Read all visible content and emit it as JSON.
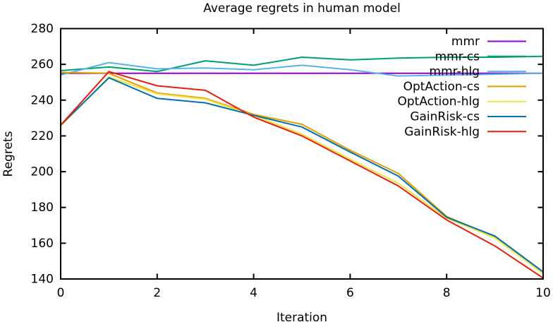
{
  "chart_data": {
    "type": "line",
    "title": "Average regrets in human model",
    "xlabel": "Iteration",
    "ylabel": "Regrets",
    "xlim": [
      0,
      10
    ],
    "ylim": [
      140,
      280
    ],
    "x_ticks": [
      0,
      2,
      4,
      6,
      8,
      10
    ],
    "y_ticks": [
      140,
      160,
      180,
      200,
      220,
      240,
      260,
      280
    ],
    "grid": false,
    "legend_position": "top-right-inside",
    "background_color": "#ffffff",
    "axis_color": "#000000",
    "x": [
      0,
      1,
      2,
      3,
      4,
      5,
      6,
      7,
      8,
      9,
      10
    ],
    "series": [
      {
        "name": "mmr",
        "color": "#9400d3",
        "values": [
          255,
          255,
          255,
          255,
          255,
          255,
          255,
          255,
          255,
          255,
          255
        ]
      },
      {
        "name": "mmr-cs",
        "color": "#009e73",
        "values": [
          256.5,
          258.5,
          256,
          262,
          259.5,
          264,
          262.5,
          263.5,
          264,
          264,
          264.5
        ]
      },
      {
        "name": "mmr-hlg",
        "color": "#56b4e9",
        "values": [
          254,
          261,
          257.5,
          258,
          257,
          259.5,
          257,
          253.5,
          254,
          254.5,
          255
        ]
      },
      {
        "name": "OptAction-cs",
        "color": "#e69f00",
        "values": [
          255.5,
          255,
          244,
          241,
          232,
          226.5,
          212,
          199,
          175,
          163.5,
          143.5
        ]
      },
      {
        "name": "OptAction-hlg",
        "color": "#f0e442",
        "values": [
          225.5,
          253,
          243.5,
          240.5,
          231.5,
          221,
          207,
          193.5,
          174,
          163,
          143
        ]
      },
      {
        "name": "GainRisk-cs",
        "color": "#0072b2",
        "values": [
          226,
          252.5,
          241,
          238.5,
          231.5,
          225,
          211,
          197.5,
          174.5,
          164,
          144
        ]
      },
      {
        "name": "GainRisk-hlg",
        "color": "#e51e10",
        "values": [
          226,
          256,
          248,
          245.5,
          230.5,
          220,
          206,
          192,
          173,
          158.5,
          140.5
        ]
      }
    ]
  }
}
